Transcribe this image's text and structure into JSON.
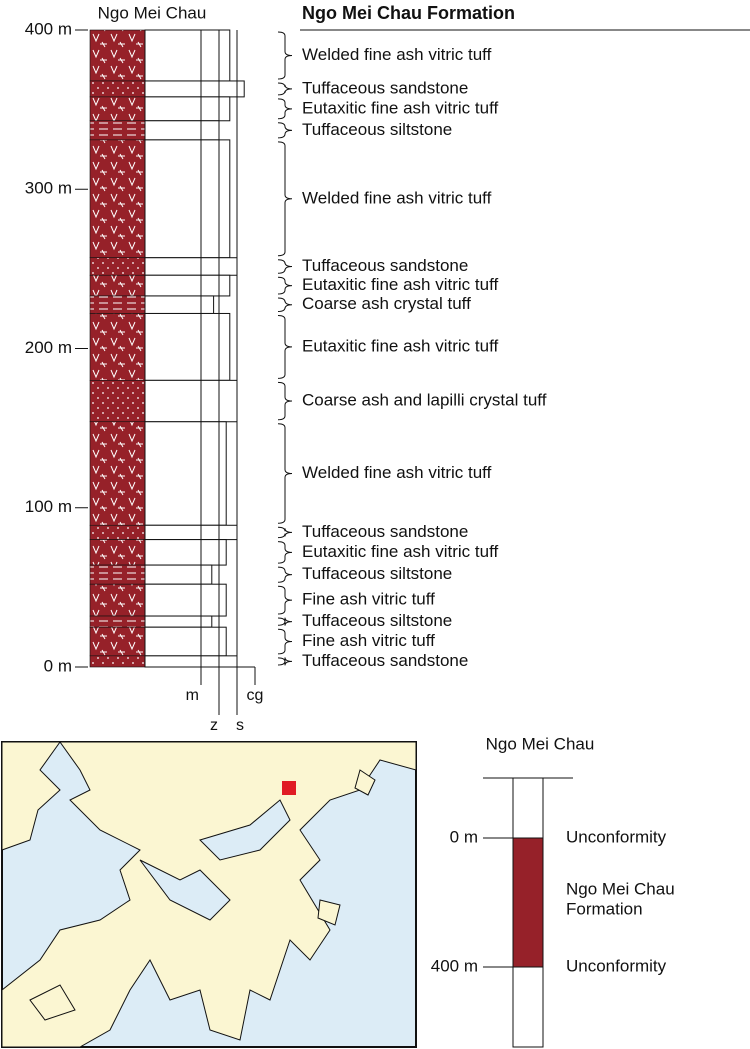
{
  "formation_title": "Ngo Mei Chau Formation",
  "column": {
    "title": "Ngo Mei Chau",
    "depth_lim": [
      0,
      400
    ],
    "depth_ticks": [
      {
        "value": 400,
        "label": "400 m"
      },
      {
        "value": 300,
        "label": "300 m"
      },
      {
        "value": 200,
        "label": "200 m"
      },
      {
        "value": 100,
        "label": "100 m"
      },
      {
        "value": 0,
        "label": "0 m"
      }
    ],
    "grain_ticks": [
      {
        "value": 1,
        "label": "m"
      },
      {
        "value": 2,
        "label": "z"
      },
      {
        "value": 3,
        "label": "s"
      },
      {
        "value": 4,
        "label": "cg"
      }
    ],
    "layers": [
      {
        "top": 400,
        "bottom": 368,
        "grain": 2.6,
        "lithology": "Welded fine ash vitric tuff"
      },
      {
        "top": 368,
        "bottom": 358,
        "grain": 3.4,
        "lithology": "Tuffaceous sandstone"
      },
      {
        "top": 358,
        "bottom": 343,
        "grain": 2.6,
        "lithology": "Eutaxitic fine ash vitric tuff"
      },
      {
        "top": 343,
        "bottom": 331,
        "grain": 2.0,
        "lithology": "Tuffaceous siltstone"
      },
      {
        "top": 331,
        "bottom": 257,
        "grain": 2.6,
        "lithology": "Welded fine ash vitric tuff"
      },
      {
        "top": 257,
        "bottom": 246,
        "grain": 3.0,
        "lithology": "Tuffaceous sandstone"
      },
      {
        "top": 246,
        "bottom": 233,
        "grain": 2.6,
        "lithology": "Eutaxitic fine ash vitric tuff"
      },
      {
        "top": 233,
        "bottom": 222,
        "grain": 1.7,
        "lithology": "Coarse ash crystal tuff"
      },
      {
        "top": 222,
        "bottom": 180,
        "grain": 2.6,
        "lithology": "Eutaxitic fine ash vitric tuff"
      },
      {
        "top": 180,
        "bottom": 154,
        "grain": 3.0,
        "lithology": "Coarse ash and lapilli crystal tuff"
      },
      {
        "top": 154,
        "bottom": 89,
        "grain": 2.4,
        "lithology": "Welded fine ash vitric tuff"
      },
      {
        "top": 89,
        "bottom": 80,
        "grain": 3.0,
        "lithology": "Tuffaceous sandstone"
      },
      {
        "top": 80,
        "bottom": 64,
        "grain": 2.4,
        "lithology": "Eutaxitic fine ash vitric tuff"
      },
      {
        "top": 64,
        "bottom": 52,
        "grain": 1.6,
        "lithology": "Tuffaceous siltstone"
      },
      {
        "top": 52,
        "bottom": 32,
        "grain": 2.4,
        "lithology": "Fine ash vitric tuff"
      },
      {
        "top": 32,
        "bottom": 25,
        "grain": 1.6,
        "lithology": "Tuffaceous siltstone"
      },
      {
        "top": 25,
        "bottom": 7,
        "grain": 2.4,
        "lithology": "Fine ash vitric tuff"
      },
      {
        "top": 7,
        "bottom": 0,
        "grain": 3.0,
        "lithology": "Tuffaceous sandstone"
      }
    ]
  },
  "summary": {
    "title": "Ngo Mei Chau",
    "top_depth": "0 m",
    "bottom_depth": "400 m",
    "top_boundary": "Unconformity",
    "unit": [
      "Ngo Mei Chau",
      "Formation"
    ],
    "bottom_boundary": "Unconformity"
  }
}
